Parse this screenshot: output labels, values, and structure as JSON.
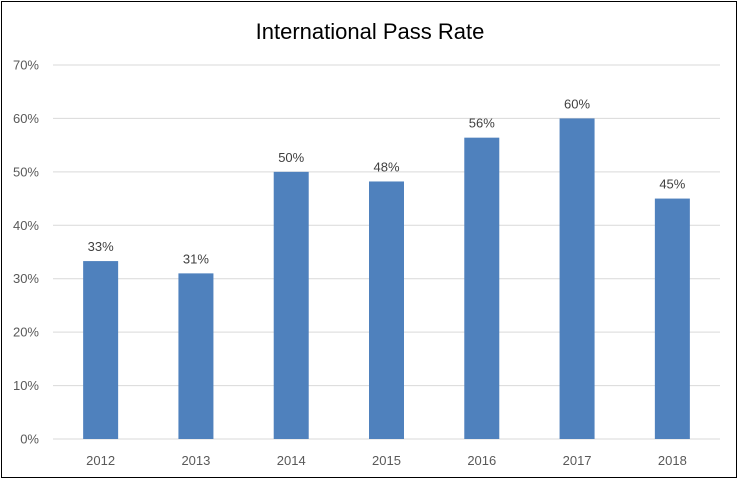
{
  "chart_data": {
    "type": "bar",
    "title": "International Pass Rate",
    "categories": [
      "2012",
      "2013",
      "2014",
      "2015",
      "2016",
      "2017",
      "2018"
    ],
    "values": [
      33.3,
      31.0,
      50.0,
      48.2,
      56.4,
      60.0,
      45.0
    ],
    "data_labels": [
      "33%",
      "31%",
      "50%",
      "48%",
      "56%",
      "60%",
      "45%"
    ],
    "y_ticks": [
      0,
      10,
      20,
      30,
      40,
      50,
      60,
      70
    ],
    "y_tick_labels": [
      "0%",
      "10%",
      "20%",
      "30%",
      "40%",
      "50%",
      "60%",
      "70%"
    ],
    "xlabel": "",
    "ylabel": "",
    "ylim": [
      0,
      70
    ],
    "grid": true,
    "legend": "none",
    "colors": {
      "bar": "#4F81BD",
      "grid": "#D9D9D9",
      "axis": "#D9D9D9",
      "frame": "#000000"
    }
  }
}
